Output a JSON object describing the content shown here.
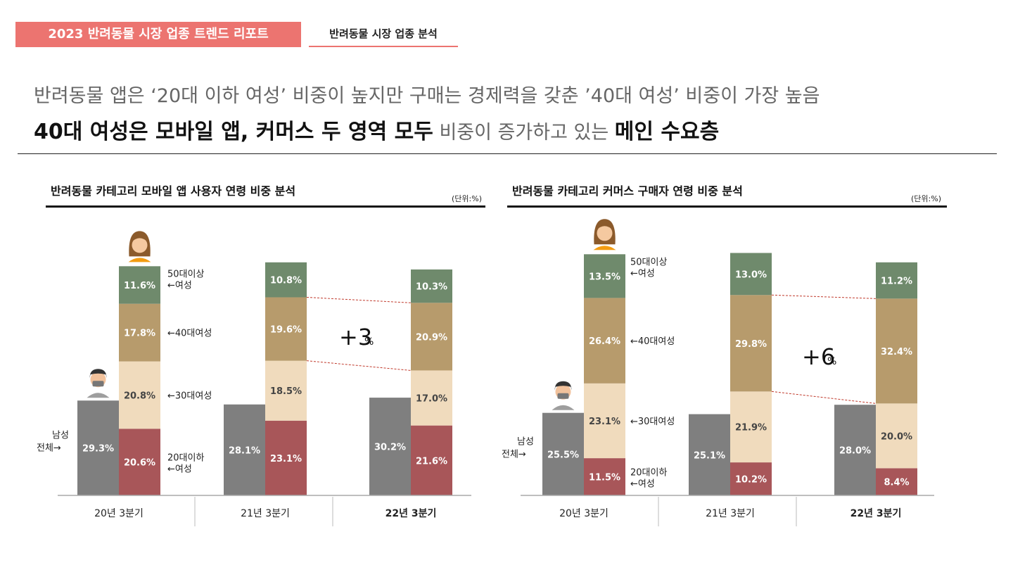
{
  "header": {
    "report_tag": "2023 반려동물 시장 업종 트렌드 리포트",
    "section_tag": "반려동물 시장 업종 분석"
  },
  "headline": {
    "line1": "반려동물 앱은 ‘20대 이하 여성’ 비중이 높지만 구매는 경제력을 갖춘 ’40대 여성’ 비중이 가장 높음",
    "line2_bold1": "40대 여성은 모바일 앱, 커머스 두 영역 모두",
    "line2_normal": " 비중이 증가하고 있는 ",
    "line2_bold2": "메인 수요층"
  },
  "colors": {
    "male": "#7f7f7f",
    "female_20": "#a85659",
    "female_30": "#f0dbbd",
    "female_40": "#b79b6c",
    "female_50": "#6f8a6c",
    "accent": "#ec7470",
    "trend_line": "#c0392b"
  },
  "legend_labels": {
    "male_total": [
      "남성",
      "전체→"
    ],
    "f50": [
      "50대이상",
      "←여성"
    ],
    "f40": [
      "←40대여성"
    ],
    "f30": [
      "←30대여성"
    ],
    "f20": [
      "20대이하",
      "←여성"
    ]
  },
  "chart_data": [
    {
      "type": "bar",
      "title": "반려동물 카테고리 모바일 앱 사용자 연령 비중 분석",
      "unit": "(단위:%)",
      "categories": [
        "20년 3분기",
        "21년 3분기",
        "22년 3분기"
      ],
      "male_total": [
        29.3,
        28.1,
        30.2
      ],
      "female_stack": [
        {
          "name": "20대이하 여성",
          "values": [
            20.6,
            23.1,
            21.6
          ]
        },
        {
          "name": "30대여성",
          "values": [
            20.8,
            18.5,
            17.0
          ]
        },
        {
          "name": "40대여성",
          "values": [
            17.8,
            19.6,
            20.9
          ]
        },
        {
          "name": "50대이상 여성",
          "values": [
            11.6,
            10.8,
            10.3
          ]
        }
      ],
      "annotation": {
        "big": "+3",
        "small": "%"
      }
    },
    {
      "type": "bar",
      "title": "반려동물 카테고리 커머스 구매자 연령 비중 분석",
      "unit": "(단위:%)",
      "categories": [
        "20년 3분기",
        "21년 3분기",
        "22년 3분기"
      ],
      "male_total": [
        25.5,
        25.1,
        28.0
      ],
      "female_stack": [
        {
          "name": "20대이하 여성",
          "values": [
            11.5,
            10.2,
            8.4
          ]
        },
        {
          "name": "30대여성",
          "values": [
            23.1,
            21.9,
            20.0
          ]
        },
        {
          "name": "40대여성",
          "values": [
            26.4,
            29.8,
            32.4
          ]
        },
        {
          "name": "50대이상 여성",
          "values": [
            13.5,
            13.0,
            11.2
          ]
        }
      ],
      "annotation": {
        "big": "+6",
        "small": "%"
      }
    }
  ]
}
